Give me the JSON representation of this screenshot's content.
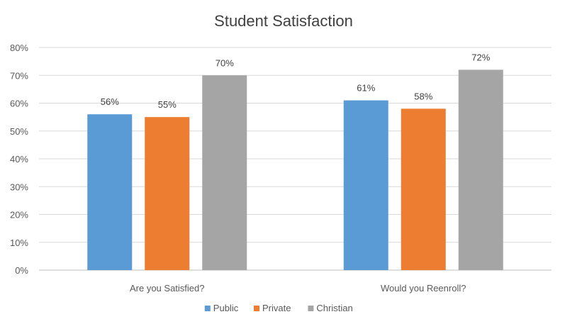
{
  "chart_data": {
    "type": "bar",
    "title": "Student Satisfaction",
    "categories": [
      "Are you Satisfied?",
      "Would you Reenroll?"
    ],
    "series": [
      {
        "name": "Public",
        "values": [
          56,
          61
        ],
        "labels": [
          "56%",
          "61%"
        ],
        "color": "#5B9BD5"
      },
      {
        "name": "Private",
        "values": [
          55,
          58
        ],
        "labels": [
          "55%",
          "58%"
        ],
        "color": "#ED7D31"
      },
      {
        "name": "Christian",
        "values": [
          70,
          72
        ],
        "labels": [
          "70%",
          "72%"
        ],
        "color": "#A5A5A5"
      }
    ],
    "ylim": [
      0,
      80
    ],
    "yticks": [
      0,
      10,
      20,
      30,
      40,
      50,
      60,
      70,
      80
    ],
    "ytick_labels": [
      "0%",
      "10%",
      "20%",
      "30%",
      "40%",
      "50%",
      "60%",
      "70%",
      "80%"
    ],
    "xlabel": "",
    "ylabel": "",
    "grid": true,
    "legend_position": "bottom"
  }
}
